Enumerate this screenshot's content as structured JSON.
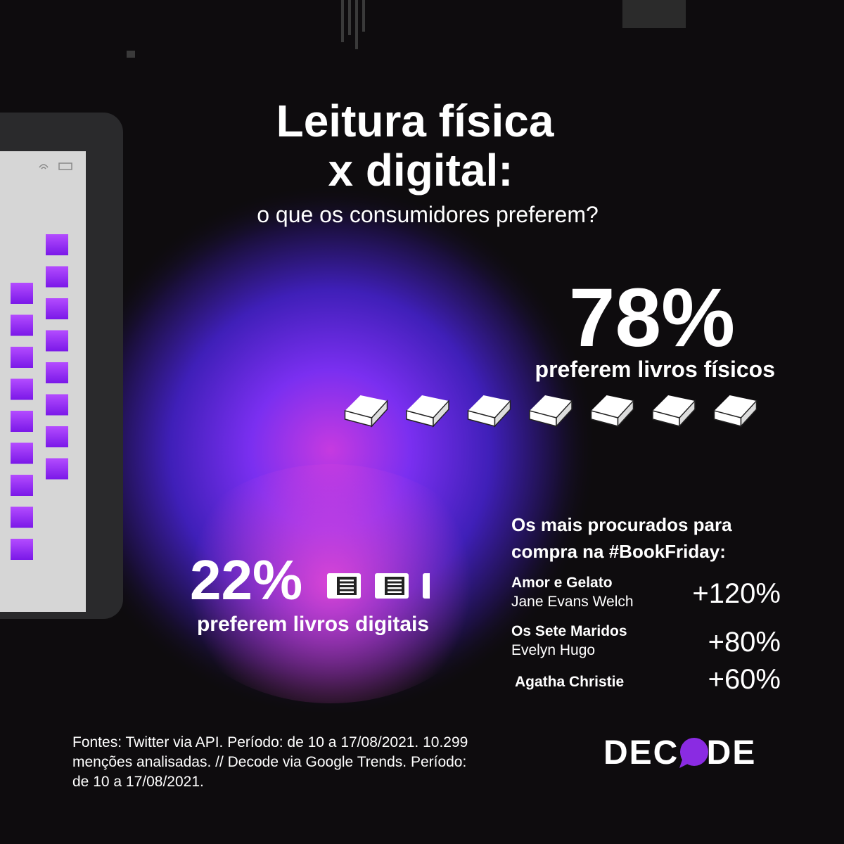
{
  "header": {
    "title_line1": "Leitura física",
    "title_line2": "x digital:",
    "subtitle": "o que os consumidores preferem?"
  },
  "physical": {
    "share": {
      "value": 78,
      "label": "78%"
    },
    "caption": "preferem livros físicos"
  },
  "digital": {
    "share": {
      "value": 22,
      "label": "22%"
    },
    "caption": "preferem livros digitais"
  },
  "ranking": {
    "heading_line1": "Os mais procurados para",
    "heading_line2": "compra na #BookFriday:",
    "items": [
      {
        "title": "Amor e Gelato",
        "author": "Jane Evans Welch",
        "growth": "+120%"
      },
      {
        "title": "Os Sete Maridos",
        "author": "Evelyn Hugo",
        "growth": "+80%"
      },
      {
        "title": "Agatha Christie",
        "growth": "+60%"
      }
    ]
  },
  "footer": {
    "sources_line1": "Fontes: Twitter via API. Período: de 10 a 17/08/2021. 10.299",
    "sources_line2": "menções analisadas. // Decode via Google Trends. Período:",
    "sources_line3": "de 10 a 17/08/2021.",
    "logo": "DECODE"
  }
}
